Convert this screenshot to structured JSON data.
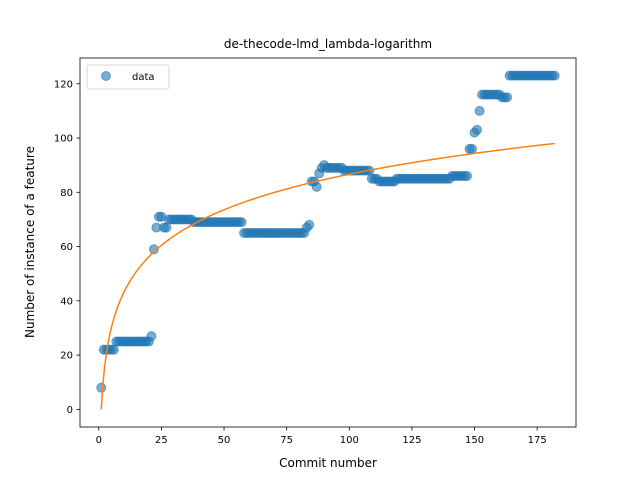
{
  "chart_data": {
    "type": "scatter",
    "title": "de-thecode-lmd_lambda-logarithm",
    "xlabel": "Commit number",
    "ylabel": "Number of instance of a feature",
    "xlim": [
      -7.5,
      190.5
    ],
    "ylim": [
      -6.5,
      129.5
    ],
    "xticks": [
      0,
      25,
      50,
      75,
      100,
      125,
      150,
      175
    ],
    "yticks": [
      0,
      20,
      40,
      60,
      80,
      100,
      120
    ],
    "grid": false,
    "legend": {
      "placement": "top-left",
      "entries": [
        "data"
      ]
    },
    "colors": {
      "data": "#1f77b4",
      "fit": "#ff7f0e"
    },
    "series": [
      {
        "name": "data",
        "style": "markers",
        "segments": [
          {
            "from": 1,
            "to": 1,
            "y": 8
          },
          {
            "from": 2,
            "to": 6,
            "y": 22
          },
          {
            "from": 7,
            "to": 20,
            "y": 25
          },
          {
            "from": 21,
            "to": 21,
            "y": 27
          },
          {
            "from": 22,
            "to": 22,
            "y": 59
          },
          {
            "from": 23,
            "to": 23,
            "y": 67
          },
          {
            "from": 24,
            "to": 25,
            "y": 71
          },
          {
            "from": 26,
            "to": 27,
            "y": 67
          },
          {
            "from": 28,
            "to": 37,
            "y": 70
          },
          {
            "from": 38,
            "to": 57,
            "y": 69
          },
          {
            "from": 58,
            "to": 82,
            "y": 65
          },
          {
            "from": 83,
            "to": 83,
            "y": 67
          },
          {
            "from": 84,
            "to": 84,
            "y": 68
          },
          {
            "from": 85,
            "to": 86,
            "y": 84
          },
          {
            "from": 87,
            "to": 87,
            "y": 82
          },
          {
            "from": 88,
            "to": 88,
            "y": 87
          },
          {
            "from": 89,
            "to": 89,
            "y": 89
          },
          {
            "from": 90,
            "to": 90,
            "y": 90
          },
          {
            "from": 91,
            "to": 97,
            "y": 89
          },
          {
            "from": 98,
            "to": 108,
            "y": 88
          },
          {
            "from": 109,
            "to": 111,
            "y": 85
          },
          {
            "from": 112,
            "to": 118,
            "y": 84
          },
          {
            "from": 119,
            "to": 140,
            "y": 85
          },
          {
            "from": 141,
            "to": 147,
            "y": 86
          },
          {
            "from": 148,
            "to": 149,
            "y": 96
          },
          {
            "from": 150,
            "to": 150,
            "y": 102
          },
          {
            "from": 151,
            "to": 151,
            "y": 103
          },
          {
            "from": 152,
            "to": 152,
            "y": 110
          },
          {
            "from": 153,
            "to": 160,
            "y": 116
          },
          {
            "from": 161,
            "to": 163,
            "y": 115
          },
          {
            "from": 164,
            "to": 182,
            "y": 123
          }
        ]
      },
      {
        "style": "line",
        "curve": "logarithmic",
        "x_range": [
          1,
          182
        ],
        "points": [
          [
            1,
            0
          ],
          [
            5,
            30
          ],
          [
            10,
            43
          ],
          [
            20,
            56
          ],
          [
            30,
            63.5
          ],
          [
            50,
            73.5
          ],
          [
            75,
            81
          ],
          [
            100,
            86.5
          ],
          [
            125,
            90.5
          ],
          [
            150,
            94.5
          ],
          [
            182,
            98
          ]
        ]
      }
    ]
  }
}
